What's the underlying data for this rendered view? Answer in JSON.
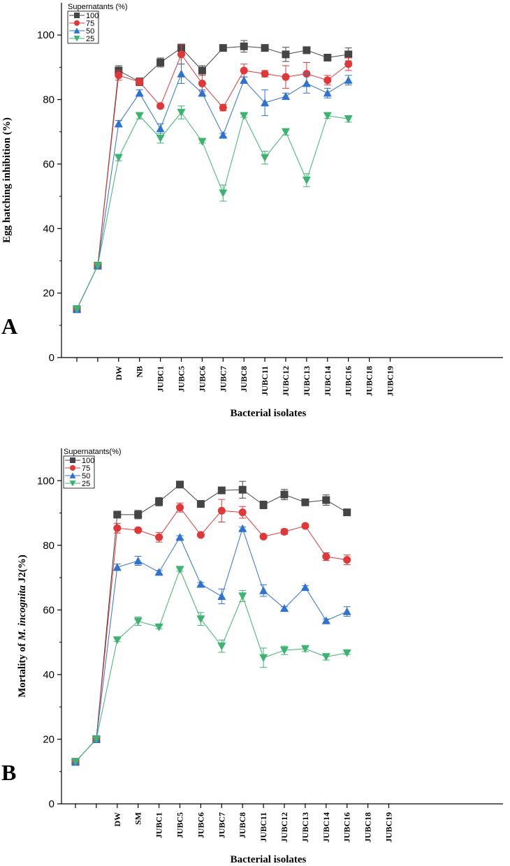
{
  "chart_data": [
    {
      "type": "line",
      "panel_label": "A",
      "xlabel": "Bacterial isolates",
      "ylabel": "Egg hatching inhibition (%)",
      "ylim": [
        0,
        110
      ],
      "yticks": [
        0,
        20,
        40,
        60,
        80,
        100
      ],
      "legend_title": "Supernatants (%)",
      "legend_position": "top-left",
      "categories": [
        "DW",
        "NB",
        "JUBC1",
        "JUBC5",
        "JUBC6",
        "JUBC7",
        "JUBC8",
        "JUBC11",
        "JUBC12",
        "JUBC13",
        "JUBC14",
        "JUBC16",
        "JUBC18",
        "JUBC19"
      ],
      "series": [
        {
          "name": "100",
          "color": "#454545",
          "marker": "square",
          "values": [
            15,
            28.5,
            89,
            85.5,
            91.5,
            96,
            89,
            96,
            96.5,
            96,
            94,
            95.3,
            93,
            94
          ],
          "errors": [
            0,
            0,
            1.5,
            1.2,
            1.4,
            1.2,
            1.5,
            0.5,
            1.8,
            0.5,
            2.2,
            0.5,
            0.5,
            2.0
          ]
        },
        {
          "name": "75",
          "color": "#e03838",
          "marker": "circle",
          "values": [
            15,
            28.5,
            87.5,
            85.5,
            78,
            94,
            85,
            77.5,
            89,
            88,
            87,
            88,
            86,
            91
          ],
          "errors": [
            0,
            0,
            1.5,
            1.0,
            0.5,
            3.0,
            2.5,
            1.0,
            2.0,
            1.0,
            3.5,
            3.5,
            1.5,
            2.0
          ]
        },
        {
          "name": "50",
          "color": "#2f73cf",
          "marker": "triangle-up",
          "values": [
            15,
            28.5,
            72.5,
            82,
            71,
            88,
            82,
            69,
            86,
            79,
            81,
            85,
            82,
            86
          ],
          "errors": [
            0,
            0,
            1.0,
            1.0,
            1.5,
            3.0,
            1.0,
            0.5,
            1.0,
            4.0,
            1.0,
            3.0,
            1.5,
            1.5
          ]
        },
        {
          "name": "25",
          "color": "#3cb371",
          "marker": "triangle-down",
          "values": [
            15,
            28.5,
            62,
            75,
            68,
            76,
            67,
            51,
            75,
            62,
            70,
            55,
            75,
            74
          ],
          "errors": [
            0,
            0,
            1.0,
            1.0,
            1.5,
            2.0,
            0.5,
            2.5,
            0.5,
            2.0,
            1.0,
            2.0,
            0.8,
            1.0
          ]
        }
      ]
    },
    {
      "type": "line",
      "panel_label": "B",
      "xlabel": "Bacterial isolates",
      "ylabel_parts": [
        "Mortality of ",
        "M. incognita",
        " J2(%)"
      ],
      "ylim": [
        0,
        110
      ],
      "yticks": [
        0,
        20,
        40,
        60,
        80,
        100
      ],
      "legend_title": "Supernatants(%)",
      "legend_position": "top-left",
      "categories": [
        "DW",
        "SM",
        "JUBC1",
        "JUBC5",
        "JUBC6",
        "JUBC7",
        "JUBC8",
        "JUBC11",
        "JUBC12",
        "JUBC13",
        "JUBC14",
        "JUBC16",
        "JUBC18",
        "JUBC19"
      ],
      "series": [
        {
          "name": "100",
          "color": "#454545",
          "marker": "square",
          "values": [
            13,
            20,
            89.5,
            89.5,
            93.5,
            98.8,
            92.8,
            97,
            97.2,
            92.5,
            95.7,
            93.3,
            94,
            90.2
          ],
          "errors": [
            0,
            0,
            0.5,
            1.3,
            1.3,
            0.5,
            0.5,
            0.5,
            2.6,
            1.2,
            1.6,
            1.0,
            1.6,
            0.5
          ]
        },
        {
          "name": "75",
          "color": "#e03838",
          "marker": "circle",
          "values": [
            13,
            20,
            85.3,
            84.7,
            82.5,
            91.7,
            83.2,
            90.7,
            90.2,
            82.7,
            84.2,
            86,
            76.5,
            75.5
          ],
          "errors": [
            0,
            0,
            1.5,
            0.5,
            1.5,
            1.4,
            0.5,
            3.5,
            1.8,
            0.5,
            0.8,
            0.5,
            1.2,
            1.5
          ]
        },
        {
          "name": "50",
          "color": "#2f73cf",
          "marker": "triangle-up",
          "values": [
            13,
            20,
            73.2,
            75.2,
            71.7,
            82.5,
            68,
            64.2,
            85.2,
            66,
            60.5,
            67,
            56.7,
            59.5
          ],
          "errors": [
            0,
            0,
            1.0,
            1.4,
            0.5,
            0.5,
            0.5,
            2.3,
            0.5,
            1.8,
            0.5,
            0.5,
            0.5,
            1.5
          ]
        },
        {
          "name": "25",
          "color": "#3cb371",
          "marker": "triangle-down",
          "values": [
            13,
            20,
            50.7,
            56.5,
            54.7,
            72.5,
            57.2,
            48.8,
            64.3,
            45.2,
            47.5,
            48,
            45.5,
            46.7
          ],
          "errors": [
            0,
            0,
            0.5,
            1.3,
            0.5,
            0.5,
            2.0,
            1.9,
            1.7,
            3.0,
            1.3,
            0.9,
            1.0,
            0.5
          ]
        }
      ]
    }
  ]
}
